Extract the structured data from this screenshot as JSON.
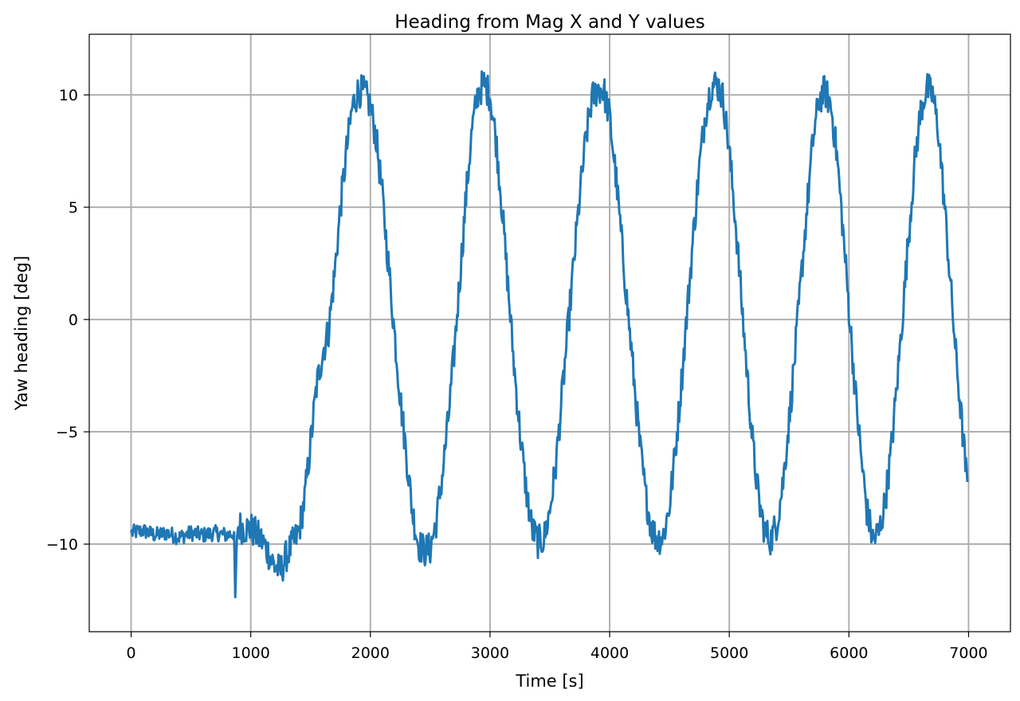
{
  "chart_data": {
    "type": "line",
    "title": "Heading from Mag X and Y values",
    "xlabel": "Time [s]",
    "ylabel": "Yaw heading [deg]",
    "xlim": [
      -350,
      7350
    ],
    "ylim": [
      -13.9,
      12.7
    ],
    "xticks": [
      0,
      1000,
      2000,
      3000,
      4000,
      5000,
      6000,
      7000
    ],
    "xtick_labels": [
      "0",
      "1000",
      "2000",
      "3000",
      "4000",
      "5000",
      "6000",
      "7000"
    ],
    "yticks": [
      10,
      5,
      0,
      -5,
      -10
    ],
    "ytick_labels": [
      "10",
      "5",
      "0",
      "−5",
      "−10"
    ],
    "grid": true,
    "line_color": "#1f77b4",
    "series": [
      {
        "name": "heading",
        "x": [
          0,
          100,
          200,
          300,
          400,
          500,
          600,
          700,
          800,
          860,
          870,
          880,
          890,
          900,
          950,
          1000,
          1050,
          1100,
          1150,
          1200,
          1250,
          1300,
          1350,
          1400,
          1450,
          1500,
          1550,
          1600,
          1650,
          1700,
          1750,
          1800,
          1850,
          1900,
          1950,
          2000,
          2050,
          2100,
          2150,
          2200,
          2250,
          2300,
          2350,
          2400,
          2450,
          2500,
          2550,
          2600,
          2650,
          2700,
          2750,
          2800,
          2850,
          2900,
          2950,
          3000,
          3050,
          3100,
          3150,
          3200,
          3250,
          3300,
          3350,
          3400,
          3450,
          3500,
          3550,
          3600,
          3650,
          3700,
          3750,
          3800,
          3850,
          3900,
          3950,
          4000,
          4050,
          4100,
          4150,
          4200,
          4250,
          4300,
          4350,
          4400,
          4450,
          4500,
          4550,
          4600,
          4650,
          4700,
          4750,
          4800,
          4850,
          4900,
          4950,
          5000,
          5050,
          5100,
          5150,
          5200,
          5250,
          5300,
          5350,
          5400,
          5450,
          5500,
          5550,
          5600,
          5650,
          5700,
          5750,
          5800,
          5850,
          5900,
          5950,
          6000,
          6050,
          6100,
          6150,
          6200,
          6250,
          6300,
          6350,
          6400,
          6450,
          6500,
          6550,
          6600,
          6650,
          6700,
          6750,
          6800,
          6850,
          6900,
          6950,
          6990
        ],
        "y": [
          -9.5,
          -9.4,
          -9.6,
          -9.5,
          -9.7,
          -9.5,
          -9.6,
          -9.5,
          -9.6,
          -9.5,
          -12.5,
          -10.5,
          -9.3,
          -9.2,
          -9.3,
          -9.3,
          -9.6,
          -9.9,
          -10.4,
          -11.0,
          -11.2,
          -10.5,
          -10.0,
          -9.5,
          -8.0,
          -5.5,
          -3.0,
          -1.5,
          -0.5,
          2.0,
          5.0,
          7.5,
          9.5,
          10.2,
          10.1,
          9.5,
          8.0,
          5.5,
          2.5,
          -0.5,
          -3.5,
          -6.0,
          -8.5,
          -10.0,
          -10.3,
          -10.2,
          -9.0,
          -7.0,
          -4.5,
          -1.5,
          2.0,
          5.5,
          8.5,
          10.1,
          10.5,
          10.0,
          8.0,
          5.0,
          1.5,
          -2.0,
          -5.0,
          -7.5,
          -9.3,
          -9.9,
          -9.8,
          -8.5,
          -6.5,
          -3.5,
          -0.5,
          2.5,
          5.5,
          8.0,
          9.8,
          10.3,
          10.2,
          9.0,
          6.5,
          3.5,
          0.5,
          -2.5,
          -5.5,
          -7.8,
          -9.3,
          -9.8,
          -9.6,
          -8.3,
          -5.8,
          -2.8,
          0.5,
          3.8,
          6.8,
          9.2,
          10.4,
          10.5,
          9.8,
          7.5,
          4.5,
          1.0,
          -2.5,
          -5.8,
          -8.2,
          -9.5,
          -9.8,
          -9.0,
          -7.2,
          -4.5,
          -1.5,
          1.8,
          5.0,
          8.0,
          9.8,
          10.2,
          9.5,
          7.3,
          4.0,
          0.5,
          -3.0,
          -6.0,
          -8.5,
          -9.8,
          -9.5,
          -8.2,
          -6.0,
          -3.0,
          0.3,
          3.8,
          7.0,
          9.3,
          10.3,
          10.0,
          8.3,
          5.0,
          1.5,
          -2.0,
          -5.0,
          -7.5
        ]
      }
    ]
  }
}
